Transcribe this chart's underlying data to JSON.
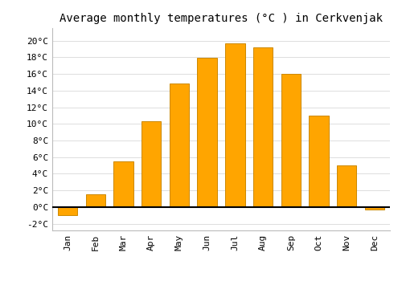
{
  "months": [
    "Jan",
    "Feb",
    "Mar",
    "Apr",
    "May",
    "Jun",
    "Jul",
    "Aug",
    "Sep",
    "Oct",
    "Nov",
    "Dec"
  ],
  "values": [
    -1.0,
    1.5,
    5.5,
    10.3,
    14.8,
    17.9,
    19.7,
    19.2,
    16.0,
    11.0,
    5.0,
    -0.3
  ],
  "bar_color": "#FFA500",
  "bar_edge_color": "#CC8800",
  "title": "Average monthly temperatures (°C ) in Cerkvenjak",
  "title_fontsize": 10,
  "ytick_labels": [
    "-2°C",
    "0°C",
    "2°C",
    "4°C",
    "6°C",
    "8°C",
    "10°C",
    "12°C",
    "14°C",
    "16°C",
    "18°C",
    "20°C"
  ],
  "ytick_values": [
    -2,
    0,
    2,
    4,
    6,
    8,
    10,
    12,
    14,
    16,
    18,
    20
  ],
  "ylim": [
    -2.8,
    21.5
  ],
  "xlim": [
    -0.55,
    11.55
  ],
  "background_color": "#ffffff",
  "grid_color": "#dddddd",
  "font_family": "monospace",
  "tick_fontsize": 8,
  "bar_width": 0.7
}
